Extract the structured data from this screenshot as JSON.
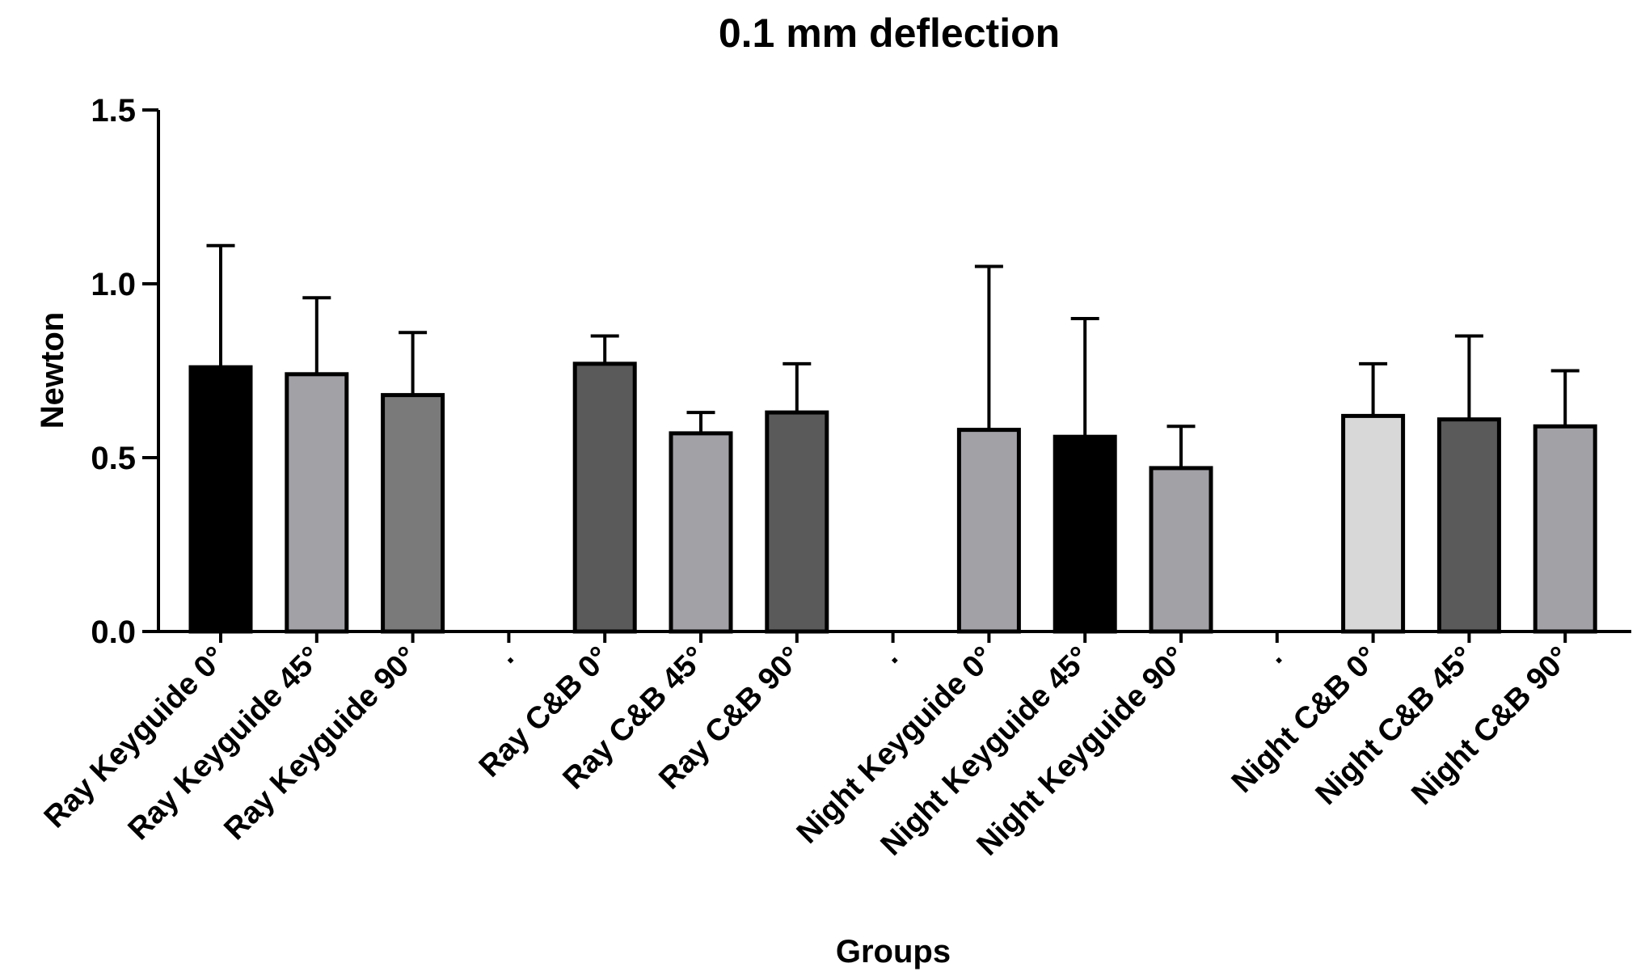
{
  "chart_data": {
    "type": "bar",
    "title": "0.1 mm deflection",
    "xlabel": "Groups",
    "ylabel": "Newton",
    "ylim": [
      0,
      1.5
    ],
    "yticks": [
      0.0,
      0.5,
      1.0,
      1.5
    ],
    "ytick_labels": [
      "0.0",
      "0.5",
      "1.0",
      "1.5"
    ],
    "grid": false,
    "legend": "none",
    "categories": [
      "Ray Keyguide 0°",
      "Ray Keyguide 45°",
      "Ray Keyguide 90°",
      ".",
      "Ray C&B 0°",
      "Ray C&B 45°",
      "Ray C&B 90°",
      ".",
      "Night Keyguide 0°",
      "Night Keyguide 45°",
      "Night Keyguide 90°",
      ".",
      "Night C&B 0°",
      "Night C&B 45°",
      "Night C&B 90°"
    ],
    "values": [
      0.76,
      0.74,
      0.68,
      null,
      0.77,
      0.57,
      0.63,
      null,
      0.58,
      0.56,
      0.47,
      null,
      0.62,
      0.61,
      0.59
    ],
    "error_upper": [
      1.11,
      0.96,
      0.86,
      null,
      0.85,
      0.63,
      0.77,
      null,
      1.05,
      0.9,
      0.59,
      null,
      0.77,
      0.85,
      0.75
    ],
    "bar_colors": [
      "#000000",
      "#a1a1a6",
      "#7a7a7a",
      null,
      "#5a5a5a",
      "#a1a1a6",
      "#5a5a5a",
      null,
      "#a1a1a6",
      "#000000",
      "#a1a1a6",
      null,
      "#d8d8d8",
      "#5a5a5a",
      "#a1a1a6"
    ],
    "edge_color": "#000000",
    "axis_color": "#000000"
  }
}
